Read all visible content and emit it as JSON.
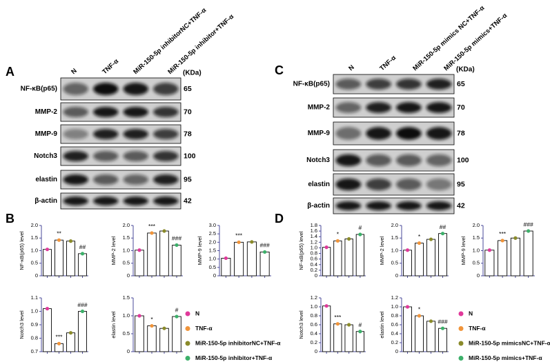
{
  "blots": [
    {
      "letter": "A",
      "columns": [
        "N",
        "TNF-α",
        "MiR-150-5p inhibitorNC+TNF-α",
        "MiR-150-5p inhibitor+TNF-α"
      ],
      "unit": "(KDa)",
      "rows": [
        {
          "label": "NF-κB(p65)",
          "kda": 65
        },
        {
          "label": "MMP-2",
          "kda": 70
        },
        {
          "label": "MMP-9",
          "kda": 78
        },
        {
          "label": "Notch3",
          "kda": 100
        },
        {
          "label": "elastin",
          "kda": 95
        },
        {
          "label": "β-actin",
          "kda": 42
        }
      ]
    },
    {
      "letter": "C",
      "columns": [
        "N",
        "TNF-α",
        "MiR-150-5p mimics NC+TNF-α",
        "MiR-150-5p mimics+TNF-α"
      ],
      "unit": "(KDa)",
      "rows": [
        {
          "label": "NF-κB(p65)",
          "kda": 65
        },
        {
          "label": "MMP-2",
          "kda": 70
        },
        {
          "label": "MMP-9",
          "kda": 78
        },
        {
          "label": "Notch3",
          "kda": 100
        },
        {
          "label": "elastin",
          "kda": 95
        },
        {
          "label": "β-actin",
          "kda": 42
        }
      ]
    }
  ],
  "legends": [
    {
      "letter": "B",
      "items": [
        {
          "label": "N",
          "color": "#e0399a"
        },
        {
          "label": "TNF-α",
          "color": "#f0943a"
        },
        {
          "label": "MiR-150-5p inhibitorNC+TNF-α",
          "color": "#8a8a2a"
        },
        {
          "label": "MiR-150-5p inhibitor+TNF-α",
          "color": "#3cb06a"
        }
      ]
    },
    {
      "letter": "D",
      "items": [
        {
          "label": "N",
          "color": "#e0399a"
        },
        {
          "label": "TNF-α",
          "color": "#f0943a"
        },
        {
          "label": "MiR-150-5p mimicsNC+TNF-α",
          "color": "#8a8a2a"
        },
        {
          "label": "MiR-150-5p mimics+TNF-α",
          "color": "#3cb06a"
        }
      ]
    }
  ],
  "chart_data": [
    {
      "type": "bar",
      "y_label": "NF-κB(p65) level",
      "values": [
        1.05,
        1.42,
        1.38,
        0.88
      ],
      "colors": [
        "#e0399a",
        "#f0943a",
        "#8a8a2a",
        "#3cb06a"
      ],
      "annotations": [
        null,
        "**",
        null,
        "##"
      ],
      "ylim": [
        0,
        2
      ],
      "yticks": [
        0,
        0.5,
        {
          "value": 1,
          "label": "1.0"
        },
        1.5,
        {
          "value": 2,
          "label": "2.0"
        }
      ]
    },
    {
      "type": "bar",
      "y_label": "MMP-2 level",
      "values": [
        1.02,
        1.7,
        1.78,
        1.22
      ],
      "colors": [
        "#e0399a",
        "#f0943a",
        "#8a8a2a",
        "#3cb06a"
      ],
      "annotations": [
        null,
        "***",
        null,
        "###"
      ],
      "ylim": [
        0,
        2
      ],
      "yticks": [
        0,
        0.5,
        {
          "value": 1,
          "label": "1.0"
        },
        1.5,
        {
          "value": 2,
          "label": "2.0"
        }
      ]
    },
    {
      "type": "bar",
      "y_label": "MMP-9 level",
      "values": [
        1.05,
        2.0,
        2.02,
        1.42
      ],
      "colors": [
        "#e0399a",
        "#f0943a",
        "#8a8a2a",
        "#3cb06a"
      ],
      "annotations": [
        null,
        "***",
        null,
        "###"
      ],
      "ylim": [
        0,
        3
      ],
      "yticks": [
        0,
        0.5,
        {
          "value": 1,
          "label": "1.0"
        },
        1.5,
        {
          "value": 2,
          "label": "2.0"
        },
        2.5,
        {
          "value": 3,
          "label": "3.0"
        }
      ]
    },
    {
      "type": "bar",
      "y_label": "Notch3 level",
      "values": [
        1.02,
        0.76,
        0.84,
        1.0
      ],
      "colors": [
        "#e0399a",
        "#f0943a",
        "#8a8a2a",
        "#3cb06a"
      ],
      "annotations": [
        null,
        "***",
        null,
        "###"
      ],
      "ylim": [
        0.7,
        1.1
      ],
      "yticks": [
        0.7,
        0.8,
        0.9,
        {
          "value": 1,
          "label": "1.0"
        },
        1.1
      ]
    },
    {
      "type": "bar",
      "y_label": "elastin level",
      "values": [
        1.0,
        0.72,
        0.65,
        0.98
      ],
      "colors": [
        "#e0399a",
        "#f0943a",
        "#8a8a2a",
        "#3cb06a"
      ],
      "annotations": [
        null,
        "*",
        null,
        "#"
      ],
      "ylim": [
        0,
        1.5
      ],
      "yticks": [
        0,
        0.5,
        {
          "value": 1,
          "label": "1.0"
        },
        1.5
      ]
    },
    {
      "type": "bar",
      "y_label": "NF-κB(p65) level",
      "values": [
        1.02,
        1.25,
        1.32,
        1.48
      ],
      "colors": [
        "#e0399a",
        "#f0943a",
        "#8a8a2a",
        "#3cb06a"
      ],
      "annotations": [
        null,
        "*",
        null,
        "#"
      ],
      "ylim": [
        0,
        1.8
      ],
      "yticks": [
        0,
        0.2,
        0.4,
        0.6,
        0.8,
        {
          "value": 1,
          "label": "1.0"
        },
        1.2,
        1.4,
        1.6,
        1.8
      ]
    },
    {
      "type": "bar",
      "y_label": "MMP-2 level",
      "values": [
        1.02,
        1.3,
        1.45,
        1.68
      ],
      "colors": [
        "#e0399a",
        "#f0943a",
        "#8a8a2a",
        "#3cb06a"
      ],
      "annotations": [
        null,
        "*",
        null,
        "##"
      ],
      "ylim": [
        0,
        2
      ],
      "yticks": [
        0,
        0.5,
        {
          "value": 1,
          "label": "1.0"
        },
        1.5,
        {
          "value": 2,
          "label": "2.0"
        }
      ]
    },
    {
      "type": "bar",
      "y_label": "MMP-9 level",
      "values": [
        1.02,
        1.4,
        1.5,
        1.78
      ],
      "colors": [
        "#e0399a",
        "#f0943a",
        "#8a8a2a",
        "#3cb06a"
      ],
      "annotations": [
        null,
        "***",
        null,
        "###"
      ],
      "ylim": [
        0,
        2
      ],
      "yticks": [
        0,
        0.5,
        {
          "value": 1,
          "label": "1.0"
        },
        1.5,
        {
          "value": 2,
          "label": "2.0"
        }
      ]
    },
    {
      "type": "bar",
      "y_label": "Notch3 level",
      "values": [
        1.02,
        0.62,
        0.6,
        0.45
      ],
      "colors": [
        "#e0399a",
        "#f0943a",
        "#8a8a2a",
        "#3cb06a"
      ],
      "annotations": [
        null,
        "***",
        null,
        "#"
      ],
      "ylim": [
        0,
        1.2
      ],
      "yticks": [
        0,
        0.2,
        0.4,
        0.6,
        0.8,
        {
          "value": 1,
          "label": "1.0"
        },
        1.2
      ]
    },
    {
      "type": "bar",
      "y_label": "elastin level",
      "values": [
        1.0,
        0.8,
        0.68,
        0.52
      ],
      "colors": [
        "#e0399a",
        "#f0943a",
        "#8a8a2a",
        "#3cb06a"
      ],
      "annotations": [
        null,
        "*",
        null,
        "###"
      ],
      "ylim": [
        0,
        1.2
      ],
      "yticks": [
        0,
        0.2,
        0.4,
        0.6,
        0.8,
        {
          "value": 1,
          "label": "1.0"
        },
        1.2
      ]
    }
  ]
}
